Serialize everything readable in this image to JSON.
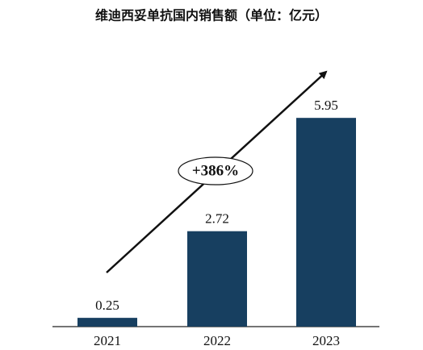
{
  "chart_data": {
    "type": "bar",
    "title": "维迪西妥单抗国内销售额（单位：亿元）",
    "categories": [
      "2021",
      "2022",
      "2023"
    ],
    "values": [
      0.25,
      2.72,
      5.95
    ],
    "color": "#173f60",
    "annotation": "+386%"
  }
}
